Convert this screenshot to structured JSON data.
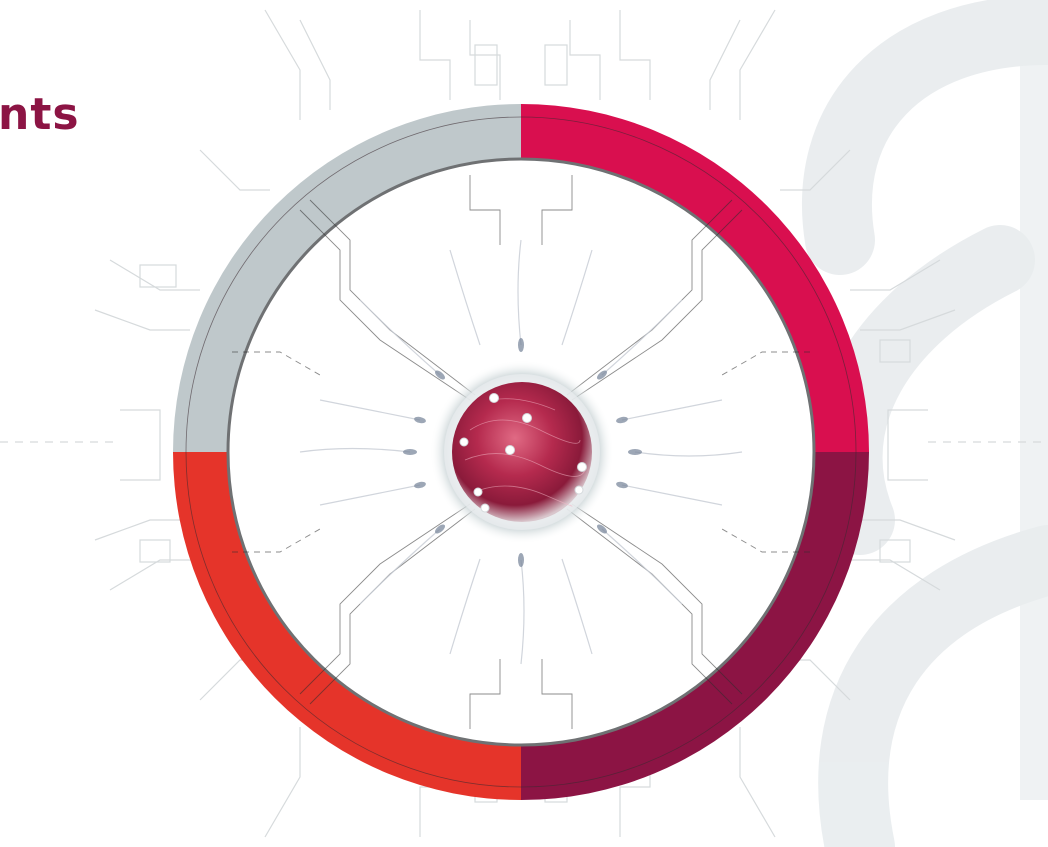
{
  "heading": {
    "text": "nts"
  },
  "colors": {
    "heading": "#8c1444",
    "segment_gray": "#bfc8cb",
    "segment_pink": "#d90f4f",
    "segment_red": "#e5342a",
    "segment_maroon": "#8c1444",
    "background_shape": "#e8ecee",
    "circuit_lines": "#d6dadc",
    "cell_core": "#b0304f"
  },
  "icons": {
    "center_image": "egg-cell-with-sperm-icon",
    "background": "stylized-number-shape"
  }
}
